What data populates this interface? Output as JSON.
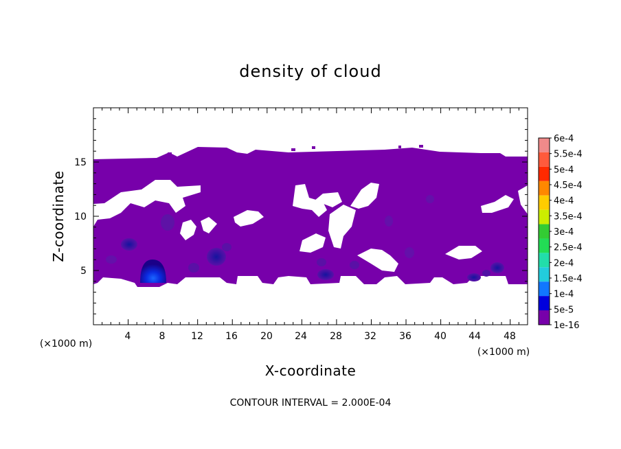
{
  "chart_data": {
    "type": "heatmap",
    "title": "density of cloud",
    "xlabel": "X-coordinate",
    "ylabel": "Z-coordinate",
    "x_unit_left": "(×1000 m)",
    "x_unit_right": "(×1000 m)",
    "xlim": [
      0,
      50
    ],
    "ylim": [
      0,
      20
    ],
    "x_ticks": [
      "4",
      "8",
      "12",
      "16",
      "20",
      "24",
      "28",
      "32",
      "36",
      "40",
      "44",
      "48"
    ],
    "y_ticks": [
      "5",
      "10",
      "15"
    ],
    "note": "CONTOUR INTERVAL = 2.000E-04",
    "colorbar": {
      "levels": [
        "6e-4",
        "5.5e-4",
        "5e-4",
        "4.5e-4",
        "4e-4",
        "3.5e-4",
        "3e-4",
        "2.5e-4",
        "2e-4",
        "1.5e-4",
        "1e-4",
        "5e-5",
        "1e-16"
      ],
      "colors": [
        "#f08a8a",
        "#ff5a3c",
        "#ff2a00",
        "#ff8800",
        "#ffcc00",
        "#ccee00",
        "#33cc33",
        "#22dd55",
        "#22ddaa",
        "#22ccdd",
        "#1177ff",
        "#0000dd",
        "#1a0066",
        "#7700aa"
      ]
    },
    "cloud_layer": {
      "fill_color": "#7700aa",
      "z_bottom": 4,
      "z_top": 15.5,
      "dense_cores": [
        {
          "x": 7,
          "z": 5,
          "intensity": "1e-4"
        },
        {
          "x": 14,
          "z": 6.2,
          "intensity": "5e-5"
        },
        {
          "x": 27,
          "z": 4.5,
          "intensity": "5e-5"
        },
        {
          "x": 46,
          "z": 5.3,
          "intensity": "5e-5"
        }
      ]
    }
  }
}
